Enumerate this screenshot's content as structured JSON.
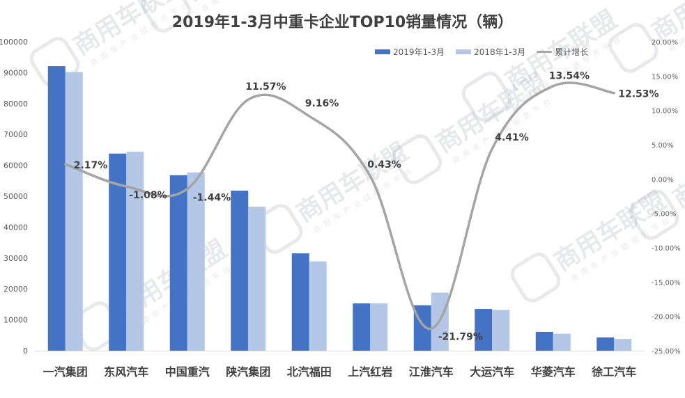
{
  "chart_data": {
    "type": "bar",
    "title": "2019年1-3月中重卡企业TOP10销量情况（辆）",
    "categories": [
      "一汽集团",
      "东风汽车",
      "中国重汽",
      "陕汽集团",
      "北汽福田",
      "上汽红岩",
      "江淮汽车",
      "大运汽车",
      "华菱汽车",
      "徐工汽车"
    ],
    "series": [
      {
        "name": "2019年1-3月",
        "axis": "left",
        "values": [
          92100,
          63800,
          56800,
          51800,
          31500,
          15300,
          14700,
          13500,
          6100,
          4300
        ]
      },
      {
        "name": "2018年1-3月",
        "axis": "left",
        "values": [
          90200,
          64400,
          57700,
          46600,
          28900,
          15300,
          18800,
          13200,
          5500,
          3800
        ]
      },
      {
        "name": "累计增长",
        "axis": "right",
        "type": "line",
        "values": [
          2.17,
          -1.08,
          -1.44,
          11.57,
          9.16,
          0.43,
          -21.79,
          4.41,
          13.54,
          12.53
        ]
      }
    ],
    "point_labels": [
      "2.17%",
      "-1.08%",
      "-1.44%",
      "11.57%",
      "9.16%",
      "0.43%",
      "-21.79%",
      "4.41%",
      "13.54%",
      "12.53%"
    ],
    "y_left": {
      "ylim": [
        0,
        100000
      ],
      "ticks": [
        "0",
        "10000",
        "20000",
        "30000",
        "40000",
        "50000",
        "60000",
        "70000",
        "80000",
        "90000",
        "100000"
      ]
    },
    "y_right": {
      "ylim": [
        -25,
        20
      ],
      "ticks": [
        "-25.00%",
        "-20.00%",
        "-15.00%",
        "-10.00%",
        "-5.00%",
        "0.00%",
        "5.00%",
        "10.00%",
        "15.00%",
        "20.00%"
      ]
    },
    "legend_position": "top-right",
    "grid": false,
    "colors": {
      "bar2019": "#4472C4",
      "bar2018": "#B4C7E7",
      "line": "#A5A5A5",
      "text": "#404040",
      "axis_text": "#595959"
    }
  },
  "watermark": {
    "brand": "商用车联盟",
    "tagline": "商用车产业链服务平台"
  }
}
